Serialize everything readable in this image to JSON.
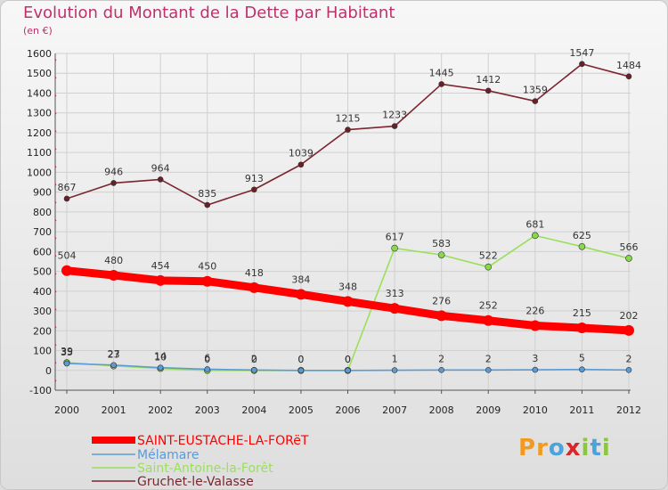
{
  "chart_data": {
    "type": "line",
    "title": "Evolution du Montant de la Dette par Habitant",
    "unit_label": "(en €)",
    "x": [
      "2000",
      "2001",
      "2002",
      "2003",
      "2004",
      "2005",
      "2006",
      "2007",
      "2008",
      "2009",
      "2010",
      "2011",
      "2012"
    ],
    "ylim": [
      -100,
      1600
    ],
    "yticks": [
      -100,
      0,
      100,
      200,
      300,
      400,
      500,
      600,
      700,
      800,
      900,
      1000,
      1100,
      1200,
      1300,
      1400,
      1500,
      1600
    ],
    "grid": true,
    "legend_position": "bottom-left",
    "series": [
      {
        "name": "SAINT-EUSTACHE-LA-FORëT",
        "color": "#ff0000",
        "values": [
          504,
          480,
          454,
          450,
          418,
          384,
          348,
          313,
          276,
          252,
          226,
          215,
          202
        ],
        "labels_shown": true
      },
      {
        "name": "Mélamare",
        "color": "#5b9bd5",
        "values": [
          35,
          27,
          14,
          6,
          2,
          0,
          0,
          1,
          2,
          2,
          3,
          5,
          2
        ],
        "labels_shown": true
      },
      {
        "name": "Saint-Antoine-la-Forêt",
        "color": "#99e05a",
        "values": [
          39,
          23,
          10,
          0,
          0,
          0,
          0,
          617,
          583,
          522,
          681,
          625,
          566
        ],
        "labels_shown": true
      },
      {
        "name": "Gruchet-le-Valasse",
        "color": "#7b2530",
        "values": [
          867,
          946,
          964,
          835,
          913,
          1039,
          1215,
          1233,
          1445,
          1412,
          1359,
          1547,
          1484
        ],
        "labels_shown": true
      }
    ]
  },
  "logo": {
    "text": "Proxiti",
    "colors": [
      "#f39a1e",
      "#f39a1e",
      "#4aa3df",
      "#d8262a",
      "#8cc63f",
      "#4aa3df",
      "#8cc63f"
    ]
  }
}
